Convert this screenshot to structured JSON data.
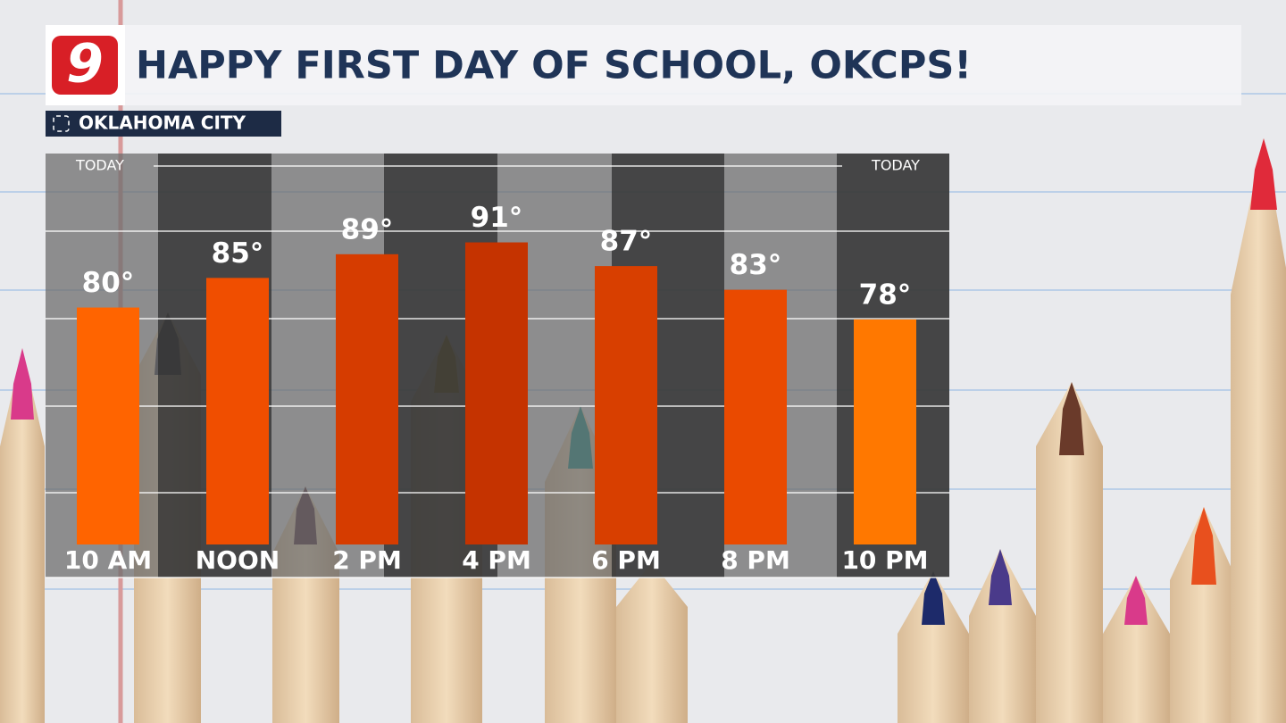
{
  "logo": "9",
  "chart_data": {
    "type": "bar",
    "title": "HAPPY FIRST DAY OF SCHOOL, OKCPS!",
    "subtitle": "OKLAHOMA CITY",
    "left_label": "TODAY",
    "right_label": "TODAY",
    "categories": [
      "10 AM",
      "NOON",
      "2 PM",
      "4 PM",
      "6 PM",
      "8 PM",
      "10 PM"
    ],
    "values": [
      80,
      85,
      89,
      91,
      87,
      83,
      78
    ],
    "value_labels": [
      "80°",
      "85°",
      "89°",
      "91°",
      "87°",
      "83°",
      "78°"
    ],
    "colors": [
      "#ff6400",
      "#f04e00",
      "#d63c00",
      "#c53300",
      "#d83f00",
      "#ea4a00",
      "#ff7800"
    ],
    "ylim": [
      40,
      106
    ]
  }
}
